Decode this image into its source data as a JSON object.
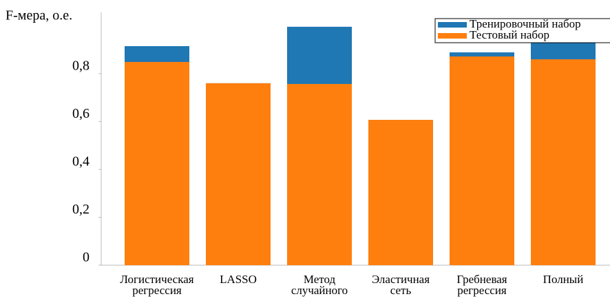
{
  "chart_data": {
    "type": "overlay_bar",
    "y_label": "F-мера, о.е.",
    "categories": [
      "Логистическая\nрегрессия",
      "LASSO",
      "Метод\nслучайного",
      "Эластичная\nсеть",
      "Гребневая\nрегрессия",
      "Полный"
    ],
    "series": [
      {
        "name": "Тренировочный набор",
        "color": "#1f77b4",
        "values": [
          0.915,
          0.76,
          0.996,
          0.607,
          0.889,
          0.93
        ]
      },
      {
        "name": "Тестовый набор",
        "color": "#ff7f0e",
        "values": [
          0.849,
          0.76,
          0.757,
          0.607,
          0.872,
          0.86
        ]
      }
    ],
    "ylim": [
      0,
      1.056
    ],
    "yticks": [
      0,
      {
        "value": 0.2,
        "label": "0,2"
      },
      {
        "value": 0.4,
        "label": "0,4"
      },
      {
        "value": 0.6,
        "label": "0,6"
      },
      {
        "value": 0.8,
        "label": "0,8"
      }
    ],
    "legend": "upper right"
  }
}
